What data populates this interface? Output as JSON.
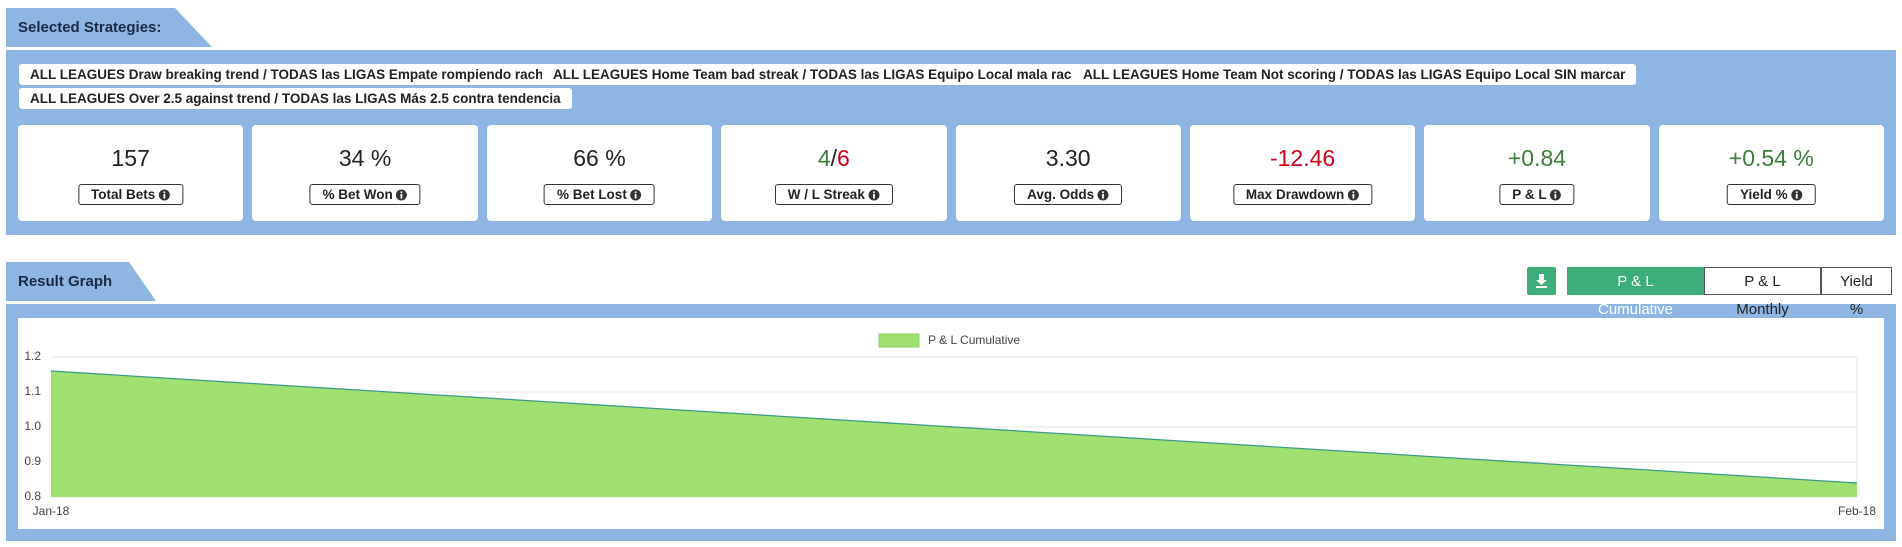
{
  "header": {
    "title": "Selected Strategies:"
  },
  "strategies": [
    "ALL LEAGUES Draw breaking trend / TODAS las LIGAS Empate rompiendo racha",
    "ALL LEAGUES Home Team bad streak / TODAS las LIGAS Equipo Local mala racha",
    "ALL LEAGUES Home Team Not scoring / TODAS las LIGAS Equipo Local SIN marcar",
    "ALL LEAGUES Over 2.5 against trend / TODAS las LIGAS Más 2.5 contra tendencia"
  ],
  "stats": [
    {
      "value": "157",
      "label": "Total Bets",
      "color": "#222222"
    },
    {
      "value": "34 %",
      "label": "% Bet Won",
      "color": "#222222"
    },
    {
      "value": "66 %",
      "label": "% Bet Lost",
      "color": "#222222"
    },
    {
      "wins": "4",
      "separator": "/",
      "losses": "6",
      "label": "W / L Streak",
      "wins_color": "#3c7d3c",
      "losses_color": "#d0021b",
      "color": "#222222"
    },
    {
      "value": "3.30",
      "label": "Avg. Odds",
      "color": "#222222"
    },
    {
      "value": "-12.46",
      "label": "Max Drawdown",
      "color": "#d0021b"
    },
    {
      "value": "+0.84",
      "label": "P & L",
      "color": "#3c7d3c"
    },
    {
      "value": "+0.54 %",
      "label": "Yield %",
      "color": "#3c7d3c"
    }
  ],
  "result_graph": {
    "title": "Result Graph",
    "buttons": [
      "P & L Cumulative",
      "P & L Monthly",
      "Yield %"
    ],
    "active_button": 0
  },
  "chart_data": {
    "type": "area",
    "x": [
      "Jan-18",
      "Feb-18"
    ],
    "series": [
      {
        "name": "P & L Cumulative",
        "color": "#a0e070",
        "line_color": "#3a9a8a",
        "values": [
          1.16,
          0.84
        ]
      }
    ],
    "ylim": [
      0.8,
      1.2
    ],
    "yticks": [
      0.8,
      0.9,
      {
        "value": 1.0,
        "label": "1.0"
      },
      1.1,
      1.2
    ],
    "grid": true,
    "legend": "top"
  }
}
